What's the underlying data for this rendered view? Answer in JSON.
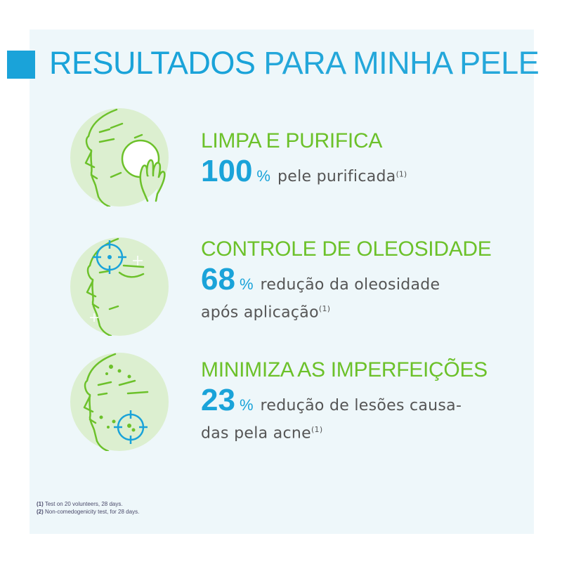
{
  "title": {
    "part1": "RESULTADOS",
    "part2": " PARA MINHA PELE"
  },
  "items": [
    {
      "heading": "LIMPA E PURIFICA",
      "value": "100",
      "unit": "%",
      "desc_line1": "pele purificada",
      "desc_line2": "",
      "note": "(1)",
      "icon": "face-cotton-pad-icon"
    },
    {
      "heading": "CONTROLE DE OLEOSIDADE",
      "value": "68",
      "unit": "%",
      "desc_line1": "redução da oleosidade",
      "desc_line2": "após aplicação",
      "note": "(1)",
      "icon": "face-oil-target-icon"
    },
    {
      "heading": "MINIMIZA AS IMPERFEIÇÕES",
      "value": "23",
      "unit": "%",
      "desc_line1": "redução de lesões causa-",
      "desc_line2": "das pela acne",
      "note": "(1)",
      "icon": "face-acne-target-icon"
    }
  ],
  "footnotes": {
    "n1_ref": "(1)",
    "n1_text": " Test on 20 volunteers, 28 days.",
    "n2_ref": "(2)",
    "n2_text": " Non-comedogenicity test, for 28 days."
  },
  "colors": {
    "blue": "#1aa3d9",
    "green": "#6cc12a",
    "text": "#555555",
    "panel": "#eef7fa"
  }
}
